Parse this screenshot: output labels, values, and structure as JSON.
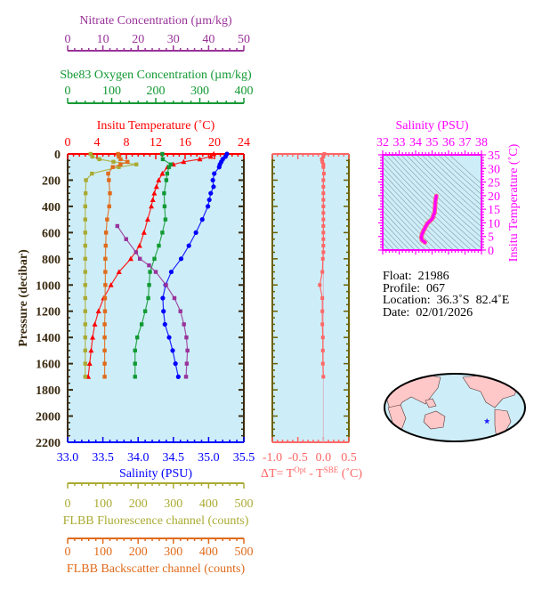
{
  "colors": {
    "plot_bg": "#cdeef8",
    "frame": "#3a2a10",
    "temperature": "#ff0000",
    "salinity": "#0000ff",
    "oxygen": "#119933",
    "nitrate": "#993399",
    "fluorescence": "#aaaa33",
    "backscatter": "#e06a1a",
    "delta_t": "#ff6666",
    "ts": "#ff00ff",
    "land": "#ffc8c8",
    "float_marker": "#2222ff"
  },
  "info": {
    "float": "Float:  21986",
    "profile": "Profile:  067",
    "location": "Location:  36.3˚S  82.4˚E",
    "date": "Date:  02/01/2026"
  },
  "chart_data": [
    {
      "type": "line",
      "panel": "main-profile",
      "ylabel": "Pressure (decibar)",
      "ylim": [
        2200,
        0
      ],
      "yticks": [
        "0",
        "200",
        "400",
        "600",
        "800",
        "1000",
        "1200",
        "1400",
        "1600",
        "1800",
        "2000",
        "2200"
      ],
      "axes": {
        "nitrate": {
          "title": "Nitrate Concentration (µm/kg)",
          "range": [
            0,
            50
          ],
          "ticks": [
            "0",
            "10",
            "20",
            "30",
            "40",
            "50"
          ]
        },
        "oxygen": {
          "title": "Sbe83 Oxygen Concentration (µm/kg)",
          "range": [
            0,
            400
          ],
          "ticks": [
            "0",
            "100",
            "200",
            "300",
            "400"
          ]
        },
        "temperature": {
          "title": "Insitu Temperature (˚C)",
          "range": [
            0,
            24
          ],
          "ticks": [
            "0",
            "4",
            "8",
            "12",
            "16",
            "20",
            "24"
          ]
        },
        "salinity": {
          "title": "Salinity (PSU)",
          "range": [
            33.0,
            35.5
          ],
          "ticks": [
            "33.0",
            "33.5",
            "34.0",
            "34.5",
            "35.0",
            "35.5"
          ]
        },
        "fluorescence": {
          "title": "FLBB Fluorescence channel (counts)",
          "range": [
            0,
            500
          ],
          "ticks": [
            "0",
            "100",
            "200",
            "300",
            "400",
            "500"
          ]
        },
        "backscatter": {
          "title": "FLBB Backscatter channel (counts)",
          "range": [
            0,
            500
          ],
          "ticks": [
            "0",
            "100",
            "200",
            "300",
            "400",
            "500"
          ]
        }
      },
      "series": [
        {
          "key": "temperature",
          "marker": "triangle",
          "pressure": [
            0,
            20,
            40,
            60,
            80,
            100,
            150,
            200,
            250,
            300,
            350,
            400,
            500,
            600,
            700,
            800,
            900,
            1000,
            1100,
            1200,
            1300,
            1400,
            1500,
            1600,
            1700
          ],
          "values": [
            19.9,
            19.5,
            18.0,
            15.8,
            14.4,
            13.6,
            12.9,
            12.4,
            12.1,
            11.8,
            11.6,
            11.4,
            10.9,
            10.4,
            9.8,
            8.6,
            7.0,
            5.9,
            4.9,
            4.2,
            3.7,
            3.4,
            3.2,
            3.0,
            2.8
          ]
        },
        {
          "key": "salinity",
          "marker": "circle",
          "pressure": [
            0,
            20,
            40,
            60,
            80,
            100,
            150,
            200,
            250,
            300,
            350,
            400,
            500,
            600,
            700,
            800,
            900,
            1000,
            1100,
            1200,
            1300,
            1400,
            1500,
            1600,
            1700
          ],
          "values": [
            35.26,
            35.24,
            35.2,
            35.18,
            35.16,
            35.15,
            35.08,
            35.06,
            35.07,
            35.03,
            35.01,
            34.99,
            34.91,
            34.82,
            34.72,
            34.61,
            34.47,
            34.39,
            34.35,
            34.36,
            34.38,
            34.44,
            34.49,
            34.53,
            34.57
          ]
        },
        {
          "key": "oxygen",
          "marker": "square",
          "pressure": [
            0,
            40,
            80,
            100,
            150,
            200,
            300,
            400,
            500,
            600,
            700,
            800,
            900,
            1000,
            1100,
            1200,
            1300,
            1400,
            1500,
            1600,
            1700
          ],
          "values": [
            215,
            216,
            234,
            230,
            226,
            224,
            219,
            220,
            222,
            215,
            207,
            197,
            187,
            185,
            183,
            176,
            168,
            158,
            153,
            153,
            153
          ]
        },
        {
          "key": "nitrate",
          "marker": "square",
          "pressure": [
            550,
            650,
            750,
            800,
            850,
            900,
            1000,
            1100,
            1200,
            1300,
            1400,
            1500,
            1600,
            1700
          ],
          "values": [
            14.1,
            16.6,
            19.4,
            20.5,
            23.1,
            25.0,
            27.9,
            30.3,
            32.0,
            33.0,
            33.7,
            34.0,
            33.8,
            33.6
          ]
        },
        {
          "key": "fluorescence",
          "marker": "square",
          "pressure": [
            0,
            20,
            40,
            60,
            80,
            100,
            150,
            200,
            300,
            400,
            500,
            600,
            700,
            800,
            900,
            1000,
            1100,
            1200,
            1300,
            1400,
            1500,
            1600,
            1700
          ],
          "values": [
            65,
            70,
            90,
            130,
            195,
            145,
            69,
            52,
            51,
            50,
            50,
            50,
            50,
            50,
            50,
            50,
            50,
            50,
            50,
            50,
            50,
            50,
            50
          ]
        },
        {
          "key": "backscatter",
          "marker": "square",
          "pressure": [
            0,
            20,
            40,
            60,
            80,
            100,
            150,
            200,
            300,
            400,
            500,
            600,
            700,
            800,
            900,
            1000,
            1100,
            1200,
            1300,
            1400,
            1500,
            1600,
            1700
          ],
          "values": [
            143,
            145,
            150,
            170,
            150,
            128,
            115,
            117,
            120,
            118,
            112,
            109,
            108,
            107,
            107,
            107,
            106,
            106,
            105,
            105,
            105,
            105,
            105
          ]
        }
      ]
    },
    {
      "type": "line",
      "panel": "delta-t",
      "xlabel": "ΔT= T",
      "xlabel_sup1": "Opt",
      "xlabel_mid": " - T",
      "xlabel_sup2": "SBE",
      "xlabel_end": " (˚C)",
      "xlim": [
        -1.0,
        0.5
      ],
      "xticks": [
        "-1.0",
        "-0.5",
        "0.0",
        "0.5"
      ],
      "ylim": [
        2200,
        0
      ],
      "pressure": [
        0,
        20,
        40,
        60,
        80,
        100,
        150,
        200,
        250,
        300,
        350,
        400,
        450,
        500,
        550,
        600,
        650,
        700,
        750,
        800,
        900,
        1000,
        1100,
        1200,
        1300,
        1400,
        1500,
        1600,
        1700
      ],
      "values": [
        0.02,
        0.0,
        -0.03,
        -0.02,
        0.0,
        0.0,
        0.01,
        0.0,
        0.0,
        0.0,
        0.0,
        0.0,
        0.0,
        0.0,
        0.0,
        0.0,
        0.0,
        0.0,
        0.0,
        -0.01,
        -0.02,
        -0.07,
        -0.02,
        -0.02,
        -0.02,
        -0.01,
        -0.01,
        -0.01,
        0.0
      ]
    },
    {
      "type": "scatter",
      "panel": "ts-diagram",
      "xlabel": "Salinity (PSU)",
      "ylabel": "Insitu Temperature (˚C)",
      "xlim": [
        32,
        38
      ],
      "ylim": [
        0,
        35
      ],
      "xticks": [
        "32",
        "33",
        "34",
        "35",
        "36",
        "37",
        "38"
      ],
      "yticks": [
        "0",
        "5",
        "10",
        "15",
        "20",
        "25",
        "30",
        "35"
      ],
      "density_contours": true
    },
    {
      "type": "map",
      "panel": "location-map",
      "float_position": {
        "lat": -36.3,
        "lon": 82.4
      },
      "marker": "star"
    }
  ]
}
